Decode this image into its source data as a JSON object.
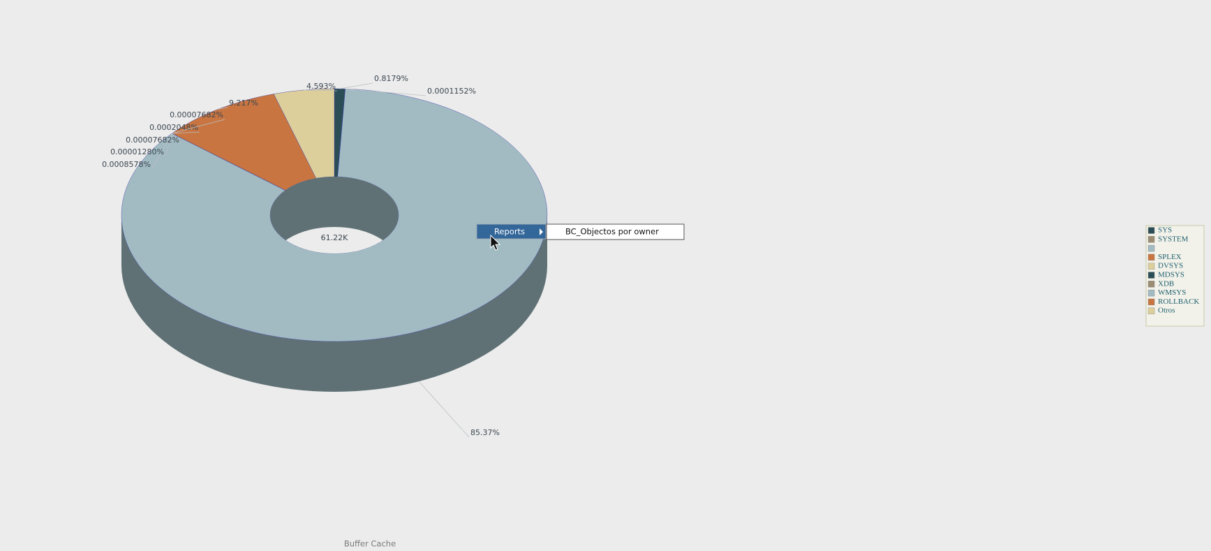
{
  "chart_data": {
    "type": "donut3d",
    "title": "Buffer Cache",
    "center_label": "61.22K",
    "categories": [
      "SYS",
      "SYSTEM",
      null,
      "SPLEX",
      "DVSYS",
      "MDSYS",
      "XDB",
      "WMSYS",
      "ROLLBACK",
      "Otros"
    ],
    "values": [
      0.8179,
      0.0001152,
      85.37,
      0.0008578,
      1.28e-05,
      7.682e-05,
      0.0002048,
      7.682e-05,
      9.217,
      4.593
    ],
    "value_labels": [
      "0.8179%",
      "0.0001152%",
      "85.37%",
      "0.0008578%",
      "0.00001280%",
      "0.00007682%",
      "0.0002048%",
      "0.00007682%",
      "9.217%",
      "4.593%"
    ],
    "colors": [
      "#2b4d55",
      "#9b8c72",
      "#a2bbc3",
      "#c87541",
      "#dccf9b",
      "#2b4d55",
      "#9b8c72",
      "#a2bbc3",
      "#c87541",
      "#dccf9b"
    ],
    "legend": "right"
  },
  "context_menu": {
    "item": "Reports",
    "submenu_item": "BC_Objectos por owner"
  }
}
